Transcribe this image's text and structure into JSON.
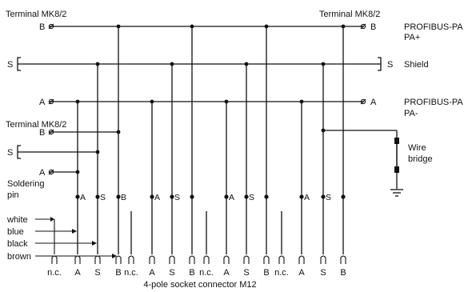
{
  "labels": {
    "terminal_left_top": "Terminal MK8/2",
    "terminal_right_top": "Terminal MK8/2",
    "terminal_left_mid": "Terminal MK8/2",
    "term_b": "B",
    "term_s": "S",
    "term_a": "A",
    "profibus_plus_1": "PROFIBUS-PA",
    "profibus_plus_2": "PA+",
    "shield": "Shield",
    "profibus_minus_1": "PROFIBUS-PA",
    "profibus_minus_2": "PA-",
    "wire_bridge_1": "Wire",
    "wire_bridge_2": "bridge",
    "soldering_1": "Soldering",
    "soldering_2": "pin",
    "wire_white": "white",
    "wire_blue": "blue",
    "wire_black": "black",
    "wire_brown": "brown",
    "connector_title": "4-pole socket connector M12"
  },
  "solder_labels": [
    "A",
    "S",
    "B",
    "A",
    "S",
    "A",
    "S",
    "A",
    "S"
  ],
  "pin_labels": [
    "n.c.",
    "A",
    "S",
    "B",
    "n.c.",
    "A",
    "S",
    "B",
    "n.c.",
    "A",
    "S",
    "B",
    "n.c.",
    "A",
    "S",
    "B"
  ]
}
